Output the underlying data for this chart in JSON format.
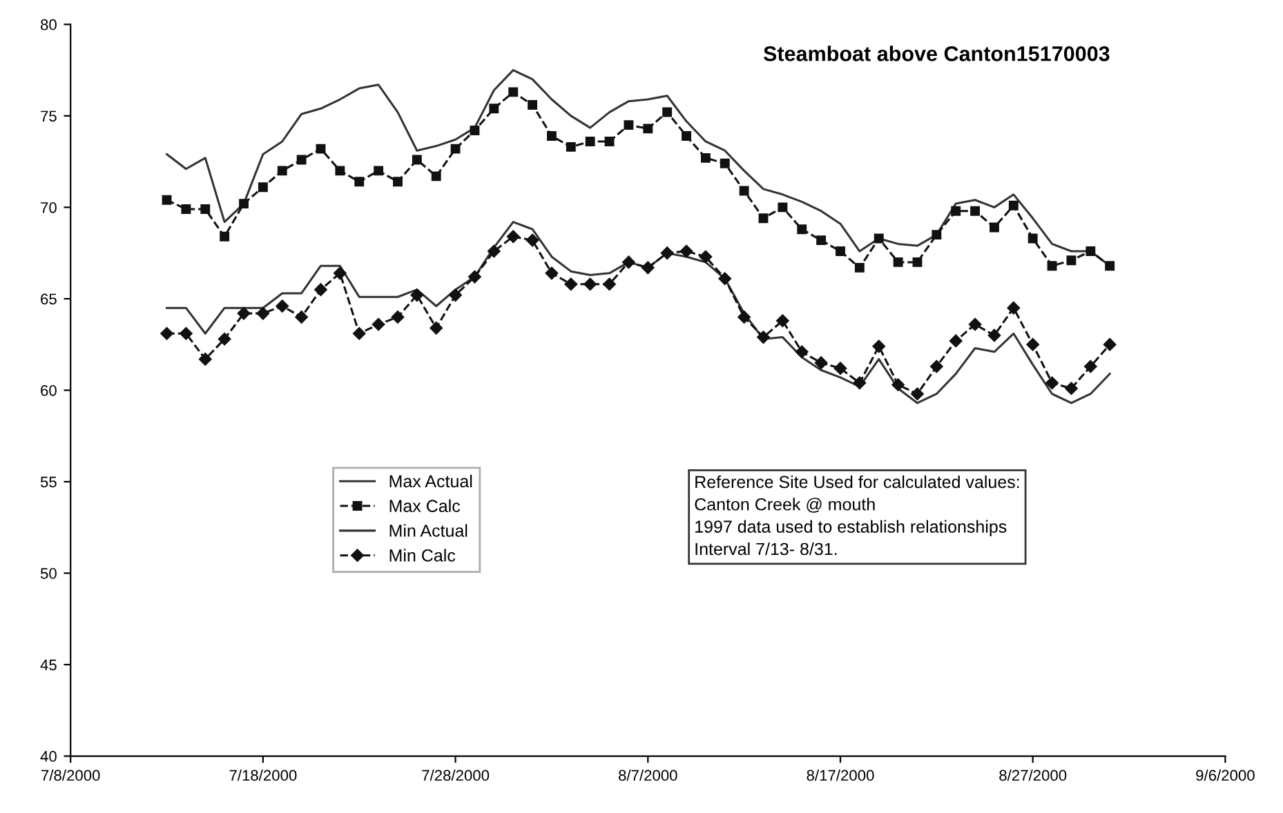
{
  "chart_data": {
    "type": "line",
    "title": "Steamboat above Canton15170003",
    "x": [
      "2000-07-13",
      "2000-07-14",
      "2000-07-15",
      "2000-07-16",
      "2000-07-17",
      "2000-07-18",
      "2000-07-19",
      "2000-07-20",
      "2000-07-21",
      "2000-07-22",
      "2000-07-23",
      "2000-07-24",
      "2000-07-25",
      "2000-07-26",
      "2000-07-27",
      "2000-07-28",
      "2000-07-29",
      "2000-07-30",
      "2000-07-31",
      "2000-08-01",
      "2000-08-02",
      "2000-08-03",
      "2000-08-04",
      "2000-08-05",
      "2000-08-06",
      "2000-08-07",
      "2000-08-08",
      "2000-08-09",
      "2000-08-10",
      "2000-08-11",
      "2000-08-12",
      "2000-08-13",
      "2000-08-14",
      "2000-08-15",
      "2000-08-16",
      "2000-08-17",
      "2000-08-18",
      "2000-08-19",
      "2000-08-20",
      "2000-08-21",
      "2000-08-22",
      "2000-08-23",
      "2000-08-24",
      "2000-08-25",
      "2000-08-26",
      "2000-08-27",
      "2000-08-28",
      "2000-08-29",
      "2000-08-30",
      "2000-08-31"
    ],
    "series": [
      {
        "name": "Max Actual",
        "color": "#333333",
        "marker": "none",
        "line_style": "solid",
        "values": [
          72.9,
          72.1,
          72.7,
          69.2,
          70.2,
          72.9,
          73.6,
          75.1,
          75.4,
          75.9,
          76.5,
          76.7,
          75.2,
          73.1,
          73.35,
          73.7,
          74.35,
          76.4,
          77.5,
          77.0,
          75.9,
          75.0,
          74.35,
          75.2,
          75.8,
          75.9,
          76.1,
          74.7,
          73.6,
          73.1,
          72.0,
          71.0,
          70.7,
          70.3,
          69.8,
          69.1,
          67.6,
          68.3,
          68.0,
          67.9,
          68.5,
          70.2,
          70.4,
          70.0,
          70.7,
          69.4,
          68.0,
          67.6,
          67.6,
          66.8
        ]
      },
      {
        "name": "Max Calc",
        "color": "#111111",
        "marker": "square",
        "line_style": "dashed",
        "values": [
          70.4,
          69.9,
          69.9,
          68.4,
          70.2,
          71.1,
          72.0,
          72.6,
          73.2,
          72.0,
          71.4,
          72.0,
          71.4,
          72.6,
          71.7,
          73.2,
          74.2,
          75.4,
          76.3,
          75.6,
          73.9,
          73.3,
          73.6,
          73.6,
          74.5,
          74.3,
          75.2,
          73.9,
          72.7,
          72.4,
          70.9,
          69.4,
          70.0,
          68.8,
          68.2,
          67.6,
          66.7,
          68.3,
          67.0,
          67.0,
          68.5,
          69.8,
          69.8,
          68.9,
          70.1,
          68.3,
          66.8,
          67.1,
          67.6,
          66.8
        ]
      },
      {
        "name": "Min Actual",
        "color": "#333333",
        "marker": "none",
        "line_style": "solid",
        "values": [
          64.5,
          64.5,
          63.1,
          64.5,
          64.5,
          64.5,
          65.3,
          65.3,
          66.8,
          66.8,
          65.1,
          65.1,
          65.1,
          65.5,
          64.6,
          65.5,
          66.2,
          67.8,
          69.2,
          68.8,
          67.3,
          66.5,
          66.3,
          66.4,
          67.0,
          66.7,
          67.5,
          67.3,
          67.0,
          66.1,
          64.2,
          62.8,
          62.9,
          61.8,
          61.1,
          60.7,
          60.2,
          61.7,
          60.1,
          59.3,
          59.8,
          60.9,
          62.3,
          62.1,
          63.1,
          61.4,
          59.8,
          59.3,
          59.8,
          60.9
        ]
      },
      {
        "name": "Min Calc",
        "color": "#111111",
        "marker": "diamond",
        "line_style": "dashed",
        "values": [
          63.1,
          63.1,
          61.7,
          62.8,
          64.2,
          64.2,
          64.6,
          64.0,
          65.5,
          66.4,
          63.1,
          63.6,
          64.0,
          65.2,
          63.4,
          65.2,
          66.2,
          67.6,
          68.4,
          68.2,
          66.4,
          65.8,
          65.8,
          65.8,
          67.0,
          66.7,
          67.5,
          67.6,
          67.3,
          66.1,
          64.0,
          62.9,
          63.8,
          62.1,
          61.5,
          61.2,
          60.4,
          62.4,
          60.3,
          59.8,
          61.3,
          62.7,
          63.6,
          63.0,
          64.5,
          62.5,
          60.4,
          60.1,
          61.3,
          62.5
        ]
      }
    ],
    "xlim": [
      "2000-07-08",
      "2000-09-06"
    ],
    "xticks": [
      {
        "value": "2000-07-08",
        "label": "7/8/2000"
      },
      {
        "value": "2000-07-18",
        "label": "7/18/2000"
      },
      {
        "value": "2000-07-28",
        "label": "7/28/2000"
      },
      {
        "value": "2000-08-07",
        "label": "8/7/2000"
      },
      {
        "value": "2000-08-17",
        "label": "8/17/2000"
      },
      {
        "value": "2000-08-27",
        "label": "8/27/2000"
      },
      {
        "value": "2000-09-06",
        "label": "9/6/2000"
      }
    ],
    "ylim": [
      40,
      80
    ],
    "yticks": [
      40,
      45,
      50,
      55,
      60,
      65,
      70,
      75,
      80
    ],
    "grid": false,
    "legend": "bottom left",
    "annotations": [
      "Reference Site Used for calculated values:\nCanton Creek @ mouth\n1997 data used to establish relationships\nInterval 7/13- 8/31."
    ]
  }
}
